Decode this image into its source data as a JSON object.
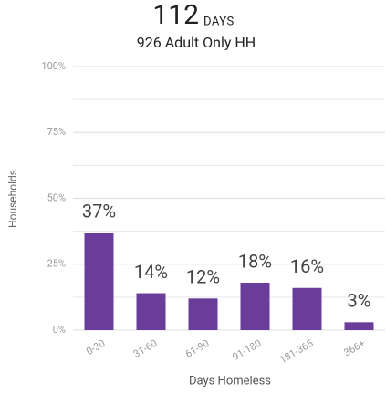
{
  "chart_data": {
    "type": "bar",
    "title": "112",
    "title_unit": "DAYS",
    "subtitle": "926 Adult Only HH",
    "y_label": "Households",
    "x_label": "Days Homeless",
    "categories": [
      "0-30",
      "31-60",
      "61-90",
      "91-180",
      "181-365",
      "366+"
    ],
    "values": [
      37,
      14,
      12,
      18,
      16,
      3
    ],
    "value_labels": [
      "37%",
      "14%",
      "12%",
      "18%",
      "16%",
      "3%"
    ],
    "color": "#6a3d9a",
    "ylim": [
      0,
      100
    ],
    "yticks": [
      {
        "value": 0,
        "label": "0%"
      },
      {
        "value": 25,
        "label": "25%"
      },
      {
        "value": 50,
        "label": "50%"
      },
      {
        "value": 75,
        "label": "75%"
      },
      {
        "value": 100,
        "label": "100%"
      }
    ],
    "minor_yticks": [
      12.5,
      37.5,
      62.5,
      87.5
    ],
    "grid": true
  }
}
